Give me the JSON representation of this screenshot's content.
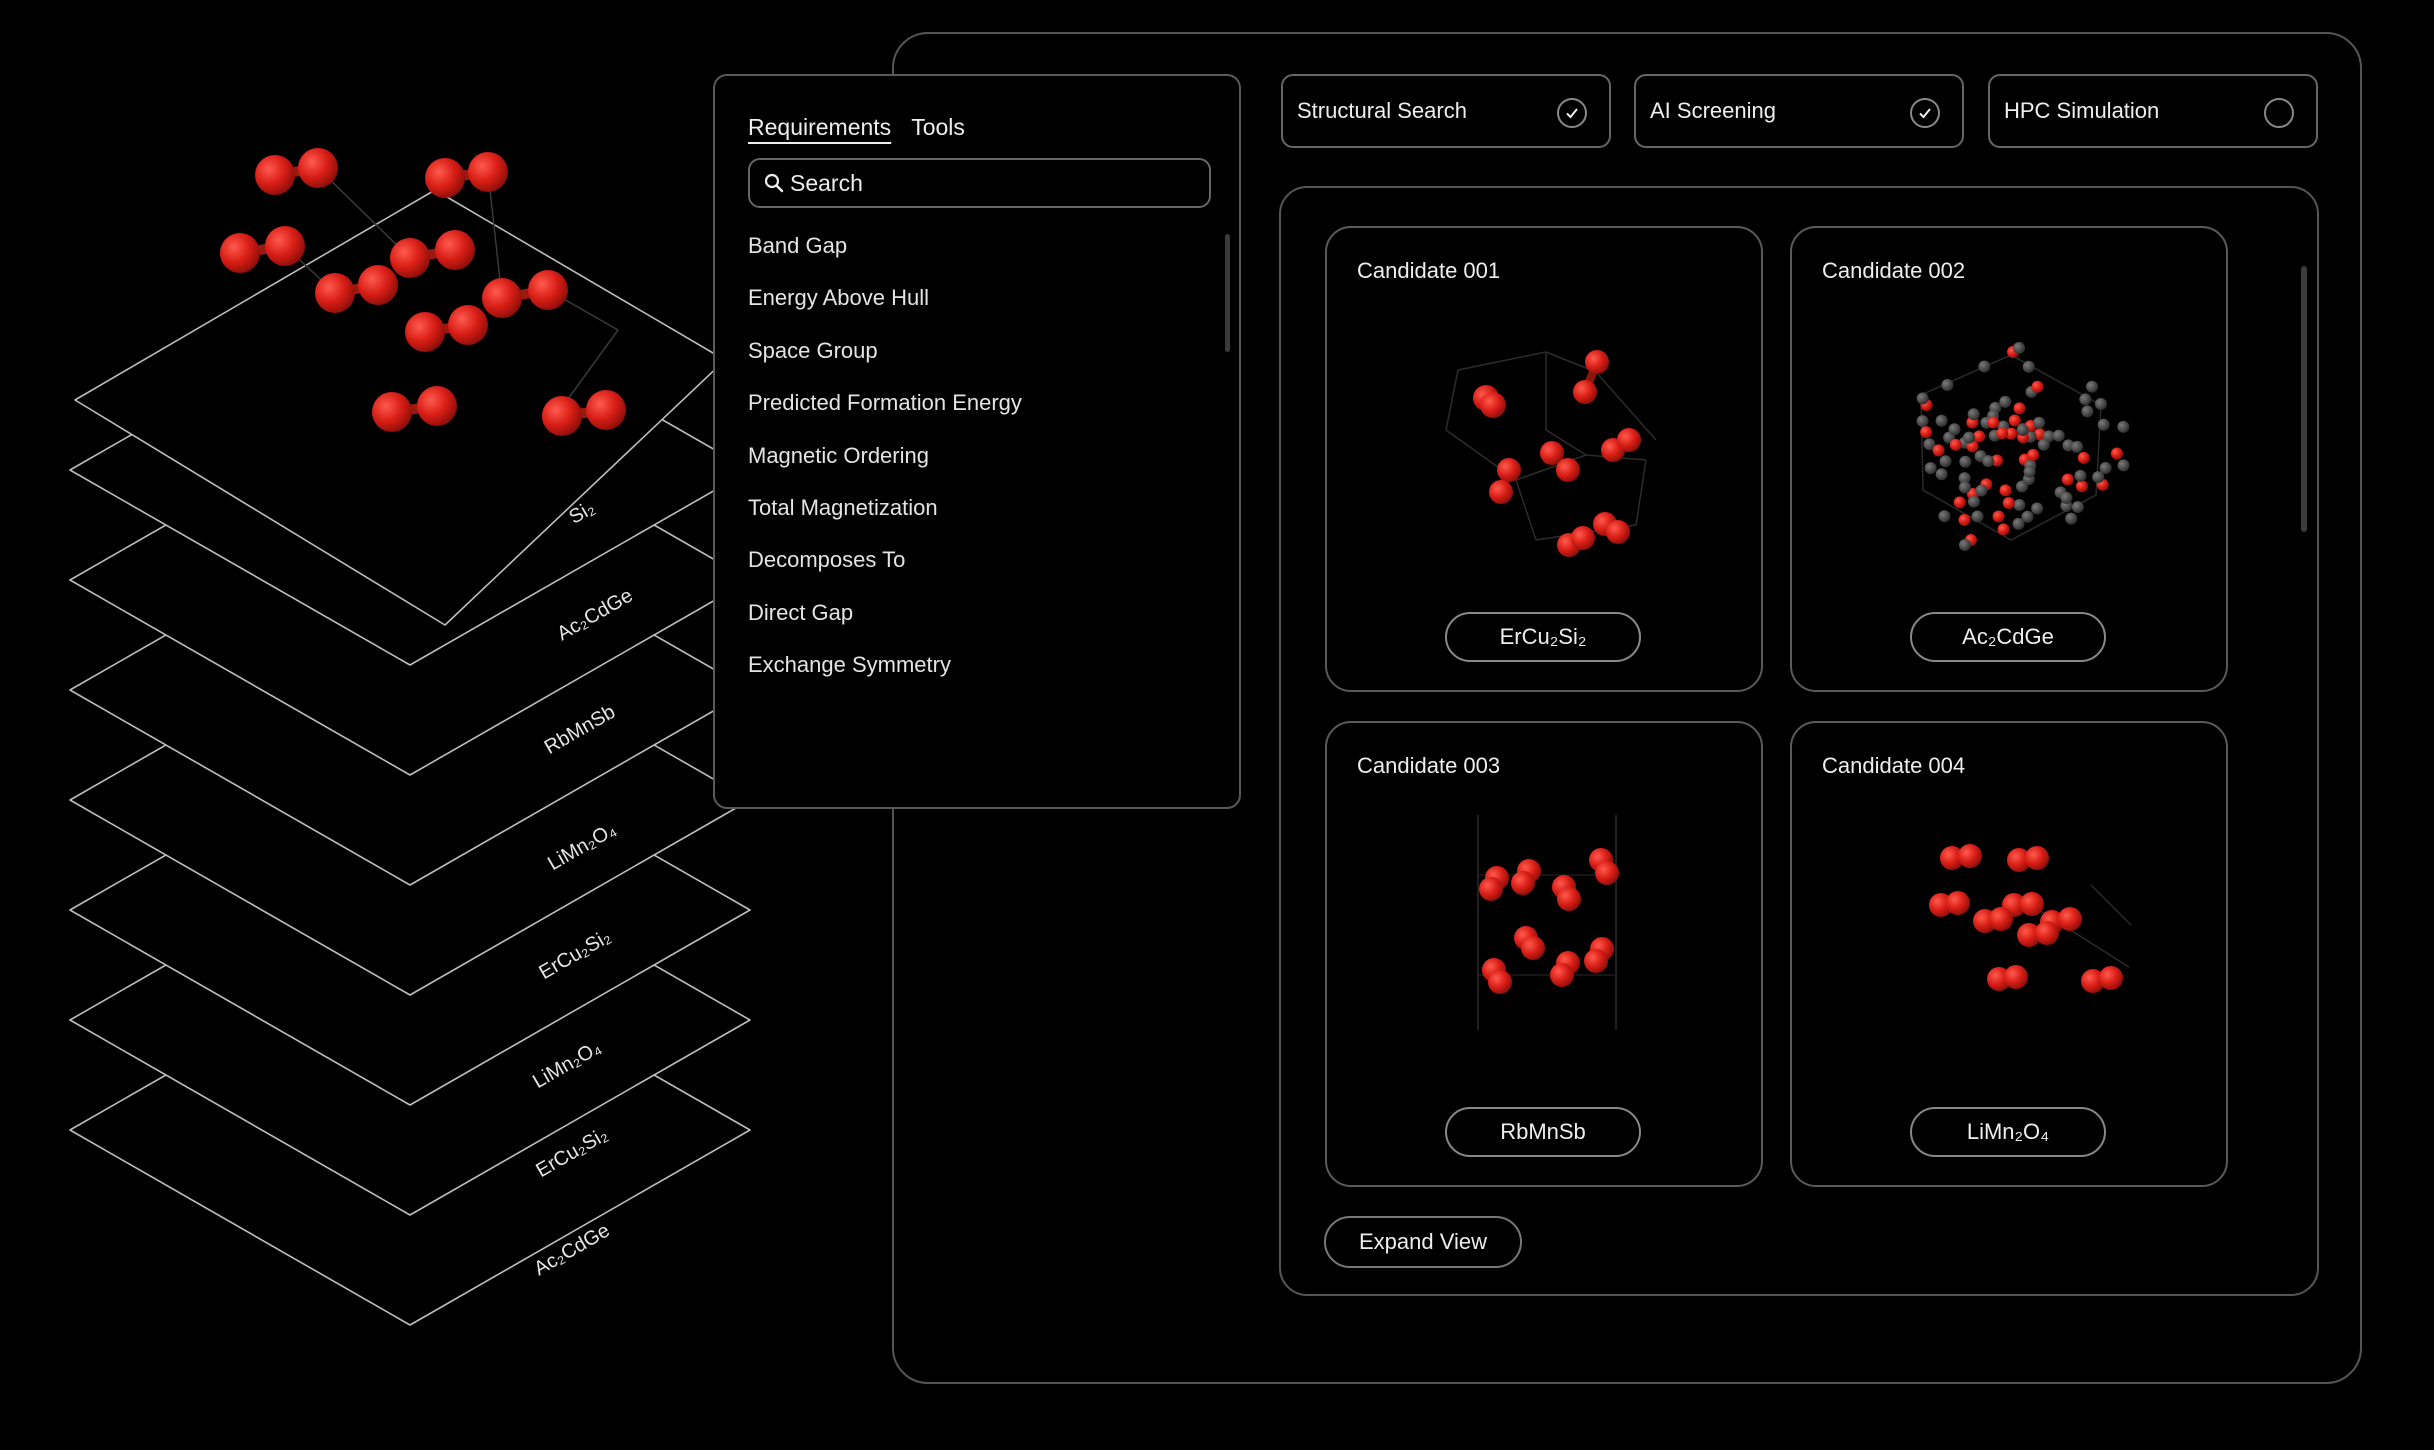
{
  "stack": {
    "layers": [
      "Si₂",
      "Ac₂CdGe",
      "RbMnSb",
      "LiMn₂O₄",
      "ErCu₂Si₂",
      "LiMn₂O₄",
      "ErCu₂Si₂",
      "Ac₂CdGe"
    ]
  },
  "requirements_panel": {
    "tabs": [
      "Requirements",
      "Tools"
    ],
    "search_placeholder": "Search",
    "items": [
      "Band Gap",
      "Energy Above Hull",
      "Space Group",
      "Predicted Formation Energy",
      "Magnetic Ordering",
      "Total Magnetization",
      "Decomposes To",
      "Direct Gap",
      "Exchange Symmetry"
    ]
  },
  "pipeline": {
    "steps": [
      {
        "label": "Structural Search",
        "done": true
      },
      {
        "label": "AI Screening",
        "done": true
      },
      {
        "label": "HPC Simulation",
        "done": false
      }
    ]
  },
  "results": {
    "candidates": [
      {
        "title": "Candidate 001",
        "formula": "ErCu₂Si₂"
      },
      {
        "title": "Candidate 002",
        "formula": "Ac₂CdGe"
      },
      {
        "title": "Candidate 003",
        "formula": "RbMnSb"
      },
      {
        "title": "Candidate 004",
        "formula": "LiMn₂O₄"
      }
    ],
    "expand_label": "Expand View"
  },
  "colors": {
    "background": "#000000",
    "atom_red": "#e8231b",
    "atom_dark": "#4a4a4a",
    "border": "#5a5a5a",
    "text": "#e8e8e8"
  }
}
